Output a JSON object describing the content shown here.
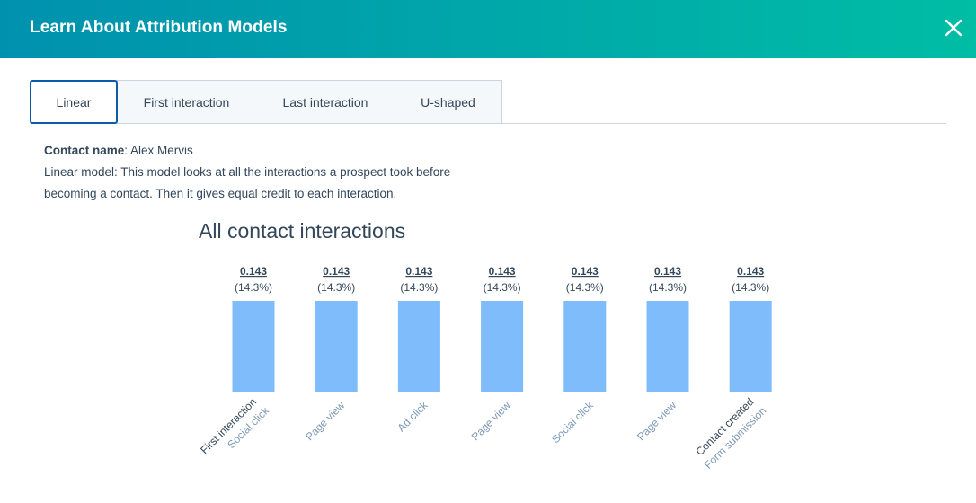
{
  "header": {
    "title": "Learn About Attribution Models",
    "close_icon": "close-icon"
  },
  "tabs": [
    {
      "label": "Linear",
      "active": true
    },
    {
      "label": "First interaction"
    },
    {
      "label": "Last interaction"
    },
    {
      "label": "U-shaped"
    }
  ],
  "info": {
    "contact_label": "Contact name",
    "contact_value": ": Alex Mervis",
    "line1": "Linear model: This model looks at all the interactions a prospect took before",
    "line2": "becoming a contact. Then it gives equal credit to each interaction."
  },
  "chart_data": {
    "type": "bar",
    "title": "All contact interactions",
    "bar_color": "#7fbcfc",
    "categories": [
      {
        "primary": "First interaction",
        "secondary": "Social click"
      },
      {
        "primary": "",
        "secondary": "Page view"
      },
      {
        "primary": "",
        "secondary": "Ad click"
      },
      {
        "primary": "",
        "secondary": "Page view"
      },
      {
        "primary": "",
        "secondary": "Social click"
      },
      {
        "primary": "",
        "secondary": "Page view"
      },
      {
        "primary": "Contact created",
        "secondary": "Form submission"
      }
    ],
    "values": [
      0.143,
      0.143,
      0.143,
      0.143,
      0.143,
      0.143,
      0.143
    ],
    "value_labels": [
      "0.143",
      "0.143",
      "0.143",
      "0.143",
      "0.143",
      "0.143",
      "0.143"
    ],
    "percent_labels": [
      "(14.3%)",
      "(14.3%)",
      "(14.3%)",
      "(14.3%)",
      "(14.3%)",
      "(14.3%)",
      "(14.3%)"
    ]
  }
}
